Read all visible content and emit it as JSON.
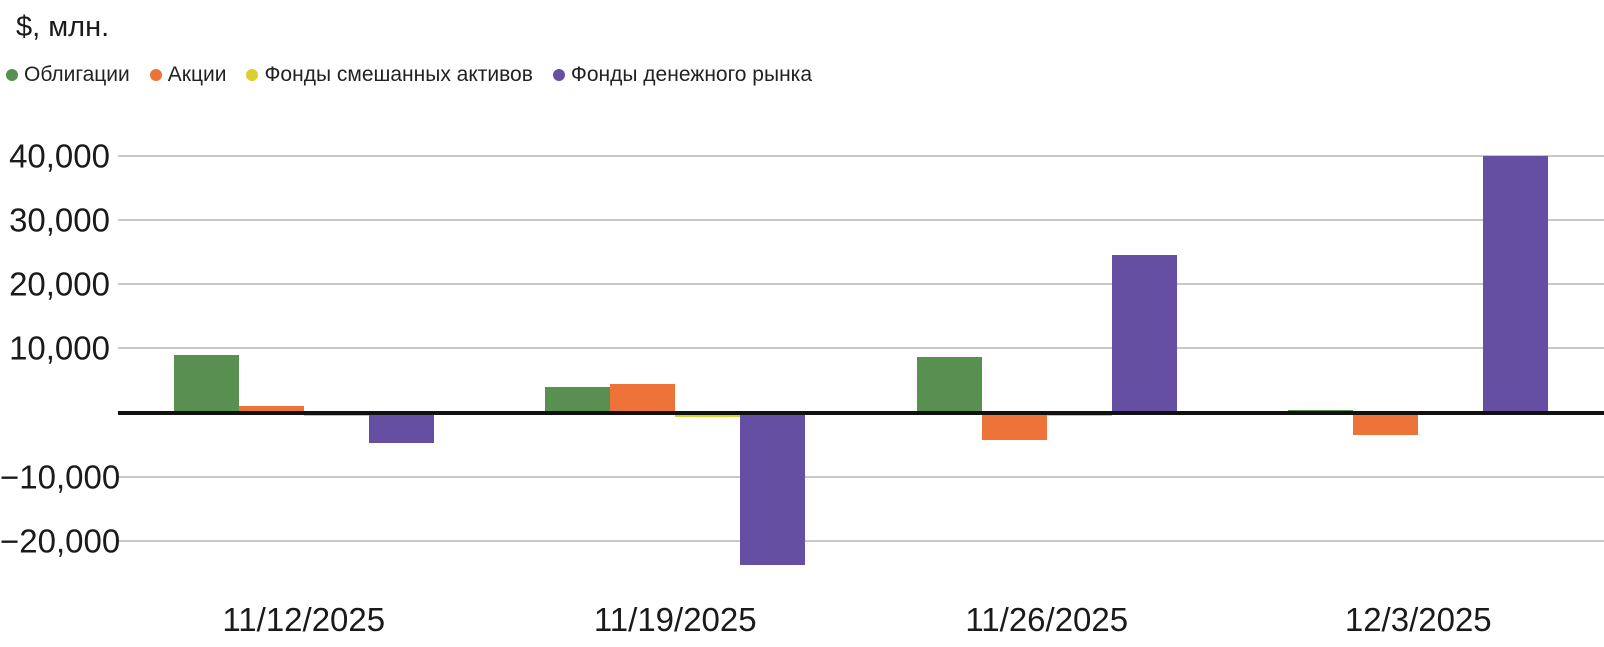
{
  "chart_data": {
    "type": "bar",
    "title": "$, млн.",
    "categories": [
      "11/12/2025",
      "11/19/2025",
      "11/26/2025",
      "12/3/2025"
    ],
    "series": [
      {
        "name": "Облигации",
        "color": "#58914f",
        "values": [
          9000,
          4000,
          8600,
          400
        ]
      },
      {
        "name": "Акции",
        "color": "#ee7338",
        "values": [
          1000,
          4500,
          -4300,
          -3500
        ]
      },
      {
        "name": "Фонды смешанных активов",
        "color": "#ddd02a",
        "values": [
          -500,
          -700,
          -600,
          -400
        ]
      },
      {
        "name": "Фонды денежного рынка",
        "color": "#654fa3",
        "values": [
          -4700,
          -23800,
          24500,
          39900
        ]
      }
    ],
    "yticks": [
      {
        "value": 40000,
        "label": "40,000"
      },
      {
        "value": 30000,
        "label": "30,000"
      },
      {
        "value": 20000,
        "label": "20,000"
      },
      {
        "value": 10000,
        "label": "10,000"
      },
      {
        "value": -10000,
        "label": "−10,000"
      },
      {
        "value": -20000,
        "label": "−20,000"
      }
    ],
    "ylim": [
      -26000,
      44000
    ],
    "grid": true,
    "legend_position": "top-left",
    "xlabel": "",
    "ylabel": "$, млн."
  },
  "colors": {
    "gridline": "#c9c9c9",
    "zero_line": "#111111",
    "text": "#1a1a1a",
    "background": "#ffffff"
  }
}
